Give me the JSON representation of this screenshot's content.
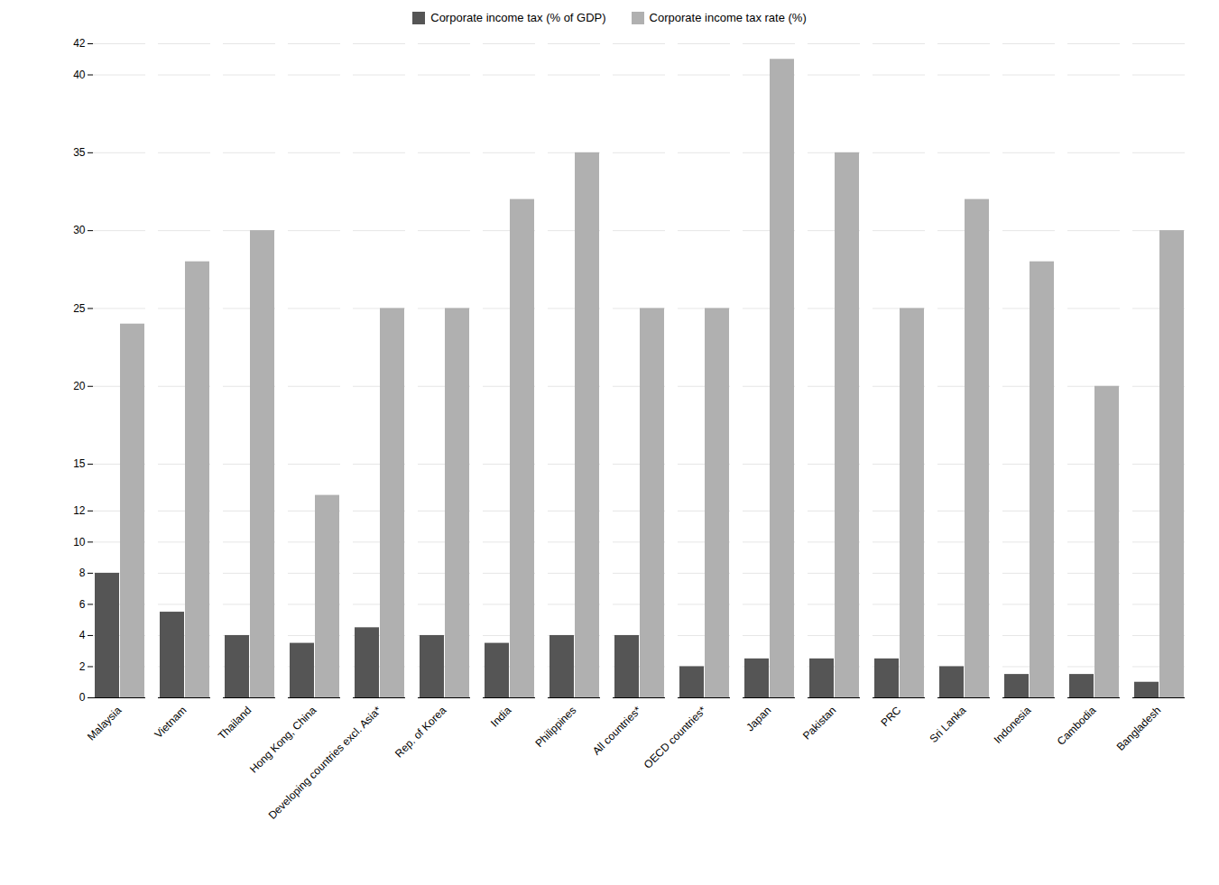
{
  "chart_data": {
    "type": "bar",
    "categories": [
      "Malaysia",
      "Vietnam",
      "Thailand",
      "Hong Kong, China",
      "Developing countries excl. Asia*",
      "Rep. of Korea",
      "India",
      "Philippines",
      "All countries*",
      "OECD countries*",
      "Japan",
      "Pakistan",
      "PRC",
      "Sri Lanka",
      "Indonesia",
      "Cambodia",
      "Bangladesh"
    ],
    "series": [
      {
        "name": "Corporate income tax (% of GDP)",
        "color": "#555555",
        "values": [
          8.0,
          5.5,
          4.0,
          3.5,
          4.5,
          4.0,
          3.5,
          4.0,
          4.0,
          2.0,
          2.5,
          2.5,
          2.5,
          2.0,
          1.5,
          1.5,
          1.0
        ]
      },
      {
        "name": "Corporate income tax rate (%)",
        "color": "#b0b0b0",
        "values": [
          24.0,
          28.0,
          30.0,
          13.0,
          25.0,
          25.0,
          32.0,
          35.0,
          25.0,
          25.0,
          41.0,
          35.0,
          25.0,
          32.0,
          28.0,
          20.0,
          30.0
        ]
      }
    ],
    "ylim": [
      0,
      42
    ],
    "yticks": [
      0,
      2,
      4,
      6,
      8,
      10,
      12,
      15,
      20,
      25,
      30,
      35,
      40,
      42
    ],
    "grid": true,
    "legend": "top"
  }
}
